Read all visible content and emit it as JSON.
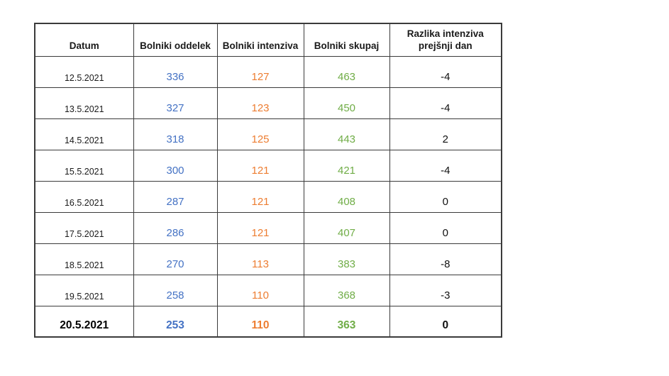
{
  "colors": {
    "oddelek": "#4472C4",
    "intenziva": "#ED7D31",
    "skupaj": "#70AD47",
    "text": "#1a1a1a",
    "border": "#3b3b3b"
  },
  "table": {
    "headers": {
      "datum": "Datum",
      "oddelek": "Bolniki oddelek",
      "intenziva": "Bolniki intenziva",
      "skupaj": "Bolniki skupaj",
      "razlika": "Razlika intenziva prejšnji dan"
    },
    "rows": [
      {
        "datum": "12.5.2021",
        "oddelek": "336",
        "intenziva": "127",
        "skupaj": "463",
        "razlika": "-4"
      },
      {
        "datum": "13.5.2021",
        "oddelek": "327",
        "intenziva": "123",
        "skupaj": "450",
        "razlika": "-4"
      },
      {
        "datum": "14.5.2021",
        "oddelek": "318",
        "intenziva": "125",
        "skupaj": "443",
        "razlika": "2"
      },
      {
        "datum": "15.5.2021",
        "oddelek": "300",
        "intenziva": "121",
        "skupaj": "421",
        "razlika": "-4"
      },
      {
        "datum": "16.5.2021",
        "oddelek": "287",
        "intenziva": "121",
        "skupaj": "408",
        "razlika": "0"
      },
      {
        "datum": "17.5.2021",
        "oddelek": "286",
        "intenziva": "121",
        "skupaj": "407",
        "razlika": "0"
      },
      {
        "datum": "18.5.2021",
        "oddelek": "270",
        "intenziva": "113",
        "skupaj": "383",
        "razlika": "-8"
      },
      {
        "datum": "19.5.2021",
        "oddelek": "258",
        "intenziva": "110",
        "skupaj": "368",
        "razlika": "-3"
      },
      {
        "datum": "20.5.2021",
        "oddelek": "253",
        "intenziva": "110",
        "skupaj": "363",
        "razlika": "0"
      }
    ]
  },
  "chart_data": {
    "type": "table",
    "title": "",
    "columns": [
      "Datum",
      "Bolniki oddelek",
      "Bolniki intenziva",
      "Bolniki skupaj",
      "Razlika intenziva prejšnji dan"
    ],
    "rows": [
      [
        "12.5.2021",
        336,
        127,
        463,
        -4
      ],
      [
        "13.5.2021",
        327,
        123,
        450,
        -4
      ],
      [
        "14.5.2021",
        318,
        125,
        443,
        2
      ],
      [
        "15.5.2021",
        300,
        121,
        421,
        -4
      ],
      [
        "16.5.2021",
        287,
        121,
        408,
        0
      ],
      [
        "17.5.2021",
        286,
        121,
        407,
        0
      ],
      [
        "18.5.2021",
        270,
        113,
        383,
        -8
      ],
      [
        "19.5.2021",
        258,
        110,
        368,
        -3
      ],
      [
        "20.5.2021",
        253,
        110,
        363,
        0
      ]
    ],
    "series_colors": {
      "Bolniki oddelek": "#4472C4",
      "Bolniki intenziva": "#ED7D31",
      "Bolniki skupaj": "#70AD47"
    },
    "notes": "Last row (20.5.2021) emphasized in bold"
  }
}
